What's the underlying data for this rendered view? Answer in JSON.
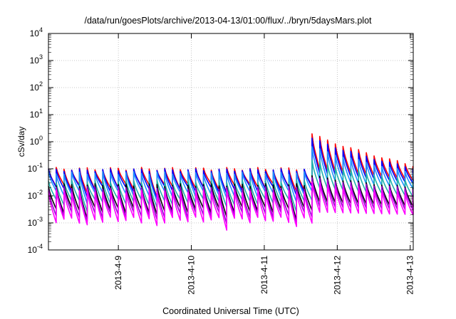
{
  "chart_data": {
    "type": "line",
    "title": "/data/run/goesPlots/archive/2013-04-13/01:00/flux/../bryn/5daysMars.plot",
    "xlabel": "Coordinated Universal Time (UTC)",
    "ylabel": "cSv/day",
    "yscale": "log",
    "ylim": [
      0.0001,
      10000
    ],
    "xlim": [
      "2013-04-08T01:00",
      "2013-04-13T01:00"
    ],
    "x_ticks": [
      {
        "date": "2013-04-09T00:00",
        "label": "2013-4-9"
      },
      {
        "date": "2013-04-10T00:00",
        "label": "2013-4-10"
      },
      {
        "date": "2013-04-11T00:00",
        "label": "2013-4-11"
      },
      {
        "date": "2013-04-12T00:00",
        "label": "2013-4-12"
      },
      {
        "date": "2013-04-13T00:00",
        "label": "2013-4-13"
      }
    ],
    "y_ticks": [
      {
        "value": 0.0001,
        "base": "10",
        "exp": "-4"
      },
      {
        "value": 0.001,
        "base": "10",
        "exp": "-3"
      },
      {
        "value": 0.01,
        "base": "10",
        "exp": "-2"
      },
      {
        "value": 0.1,
        "base": "10",
        "exp": "-1"
      },
      {
        "value": 1,
        "base": "10",
        "exp": "0"
      },
      {
        "value": 10,
        "base": "10",
        "exp": "1"
      },
      {
        "value": 100,
        "base": "10",
        "exp": "2"
      },
      {
        "value": 1000,
        "base": "10",
        "exp": "3"
      },
      {
        "value": 10000,
        "base": "10",
        "exp": "4"
      }
    ],
    "grid": true,
    "legend": false,
    "sawtooth_period_hours": 2.55,
    "event_onset": "2013-04-11T14:00",
    "series": [
      {
        "color": "#ff0000",
        "pre_peak": 0.1,
        "pre_trough": 0.022,
        "post_peak": [
          2.5,
          0.13
        ],
        "post_trough": [
          0.1,
          0.035
        ]
      },
      {
        "color": "#0000ff",
        "pre_peak": 0.09,
        "pre_trough": 0.018,
        "post_peak": [
          1.7,
          0.1
        ],
        "post_trough": [
          0.07,
          0.028
        ]
      },
      {
        "color": "#1e90ff",
        "pre_peak": 0.07,
        "pre_trough": 0.012,
        "post_peak": [
          0.8,
          0.07
        ],
        "post_trough": [
          0.04,
          0.018
        ]
      },
      {
        "color": "#20b2aa",
        "pre_peak": 0.035,
        "pre_trough": 0.006,
        "post_peak": [
          0.25,
          0.035
        ],
        "post_trough": [
          0.02,
          0.009
        ]
      },
      {
        "color": "#000000",
        "pre_peak": 0.025,
        "pre_trough": 0.003,
        "post_peak": [
          0.06,
          0.02
        ],
        "post_trough": [
          0.006,
          0.004
        ]
      },
      {
        "color": "#9400d3",
        "pre_peak": 0.02,
        "pre_trough": 0.002,
        "post_peak": [
          0.05,
          0.018
        ],
        "post_trough": [
          0.004,
          0.003
        ]
      },
      {
        "color": "#ff00ff",
        "pre_peak": 0.015,
        "pre_trough": 0.0013,
        "post_peak": [
          0.035,
          0.013
        ],
        "post_trough": [
          0.0025,
          0.002
        ]
      }
    ]
  }
}
